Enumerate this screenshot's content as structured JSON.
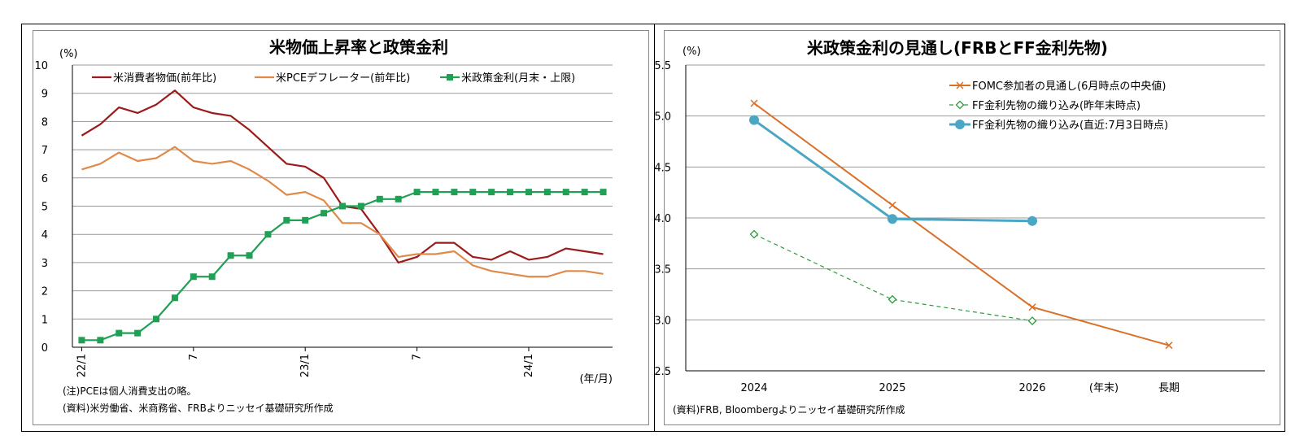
{
  "chart_data": [
    {
      "type": "line",
      "title": "米物価上昇率と政策金利",
      "yunit": "(%)",
      "xunit": "(年/月)",
      "ylim": [
        0,
        10
      ],
      "yticks": [
        "0",
        "1",
        "2",
        "3",
        "4",
        "5",
        "6",
        "7",
        "8",
        "9",
        "10"
      ],
      "x": [
        "22/1",
        "22/2",
        "22/3",
        "22/4",
        "22/5",
        "22/6",
        "22/7",
        "22/8",
        "22/9",
        "22/10",
        "22/11",
        "22/12",
        "23/1",
        "23/2",
        "23/3",
        "23/4",
        "23/5",
        "23/6",
        "23/7",
        "23/8",
        "23/9",
        "23/10",
        "23/11",
        "23/12",
        "24/1",
        "24/2",
        "24/3",
        "24/4",
        "24/5"
      ],
      "xtick_labels": [
        {
          "index": 0,
          "label": "22/1"
        },
        {
          "index": 6,
          "label": "7"
        },
        {
          "index": 12,
          "label": "23/1"
        },
        {
          "index": 18,
          "label": "7"
        },
        {
          "index": 24,
          "label": "24/1"
        }
      ],
      "grid": true,
      "legend": "top",
      "series": [
        {
          "name": "米消費者物価(前年比)",
          "color": "#9b1b1b",
          "marker": "none",
          "values": [
            7.5,
            7.9,
            8.5,
            8.3,
            8.6,
            9.1,
            8.5,
            8.3,
            8.2,
            7.7,
            7.1,
            6.5,
            6.4,
            6.0,
            5.0,
            4.9,
            4.0,
            3.0,
            3.2,
            3.7,
            3.7,
            3.2,
            3.1,
            3.4,
            3.1,
            3.2,
            3.5,
            3.4,
            3.3
          ]
        },
        {
          "name": "米PCEデフレーター(前年比)",
          "color": "#e08a4a",
          "marker": "none",
          "values": [
            6.3,
            6.5,
            6.9,
            6.6,
            6.7,
            7.1,
            6.6,
            6.5,
            6.6,
            6.3,
            5.9,
            5.4,
            5.5,
            5.2,
            4.4,
            4.4,
            4.0,
            3.2,
            3.3,
            3.3,
            3.4,
            2.9,
            2.7,
            2.6,
            2.5,
            2.5,
            2.7,
            2.7,
            2.6
          ]
        },
        {
          "name": "米政策金利(月末・上限)",
          "color": "#1fa055",
          "marker": "square",
          "values": [
            0.25,
            0.25,
            0.5,
            0.5,
            1.0,
            1.75,
            2.5,
            2.5,
            3.25,
            3.25,
            4.0,
            4.5,
            4.5,
            4.75,
            5.0,
            5.0,
            5.25,
            5.25,
            5.5,
            5.5,
            5.5,
            5.5,
            5.5,
            5.5,
            5.5,
            5.5,
            5.5,
            5.5,
            5.5
          ]
        }
      ],
      "notes": [
        "(注)PCEは個人消費支出の略。",
        "(資料)米労働省、米商務省、FRBよりニッセイ基礎研究所作成"
      ]
    },
    {
      "type": "line",
      "title": "米政策金利の見通し(FRBとFF金利先物)",
      "yunit": "(%)",
      "ylim": [
        2.5,
        5.5
      ],
      "yticks": [
        "2.5",
        "3.0",
        "3.5",
        "4.0",
        "4.5",
        "5.0",
        "5.5"
      ],
      "categories": [
        "2024",
        "2025",
        "2026",
        "(年末)",
        "長期"
      ],
      "grid": true,
      "legend": "top-right",
      "series": [
        {
          "name": "FOMC参加者の見通し(6月時点の中央値)",
          "color": "#d9702a",
          "marker": "x",
          "dash": "none",
          "values": [
            5.125,
            4.125,
            3.125,
            null,
            2.75
          ]
        },
        {
          "name": "FF金利先物の織り込み(昨年末時点)",
          "color": "#2e9a3e",
          "marker": "diamond",
          "dash": "dashed",
          "values": [
            3.84,
            3.2,
            2.99,
            null,
            null
          ]
        },
        {
          "name": "FF金利先物の織り込み(直近:7月3日時点)",
          "color": "#4ba6c4",
          "marker": "circle",
          "dash": "none",
          "values": [
            4.96,
            3.99,
            3.97,
            null,
            null
          ]
        }
      ],
      "notes": [
        "(資料)FRB, Bloombergよりニッセイ基礎研究所作成"
      ]
    }
  ]
}
